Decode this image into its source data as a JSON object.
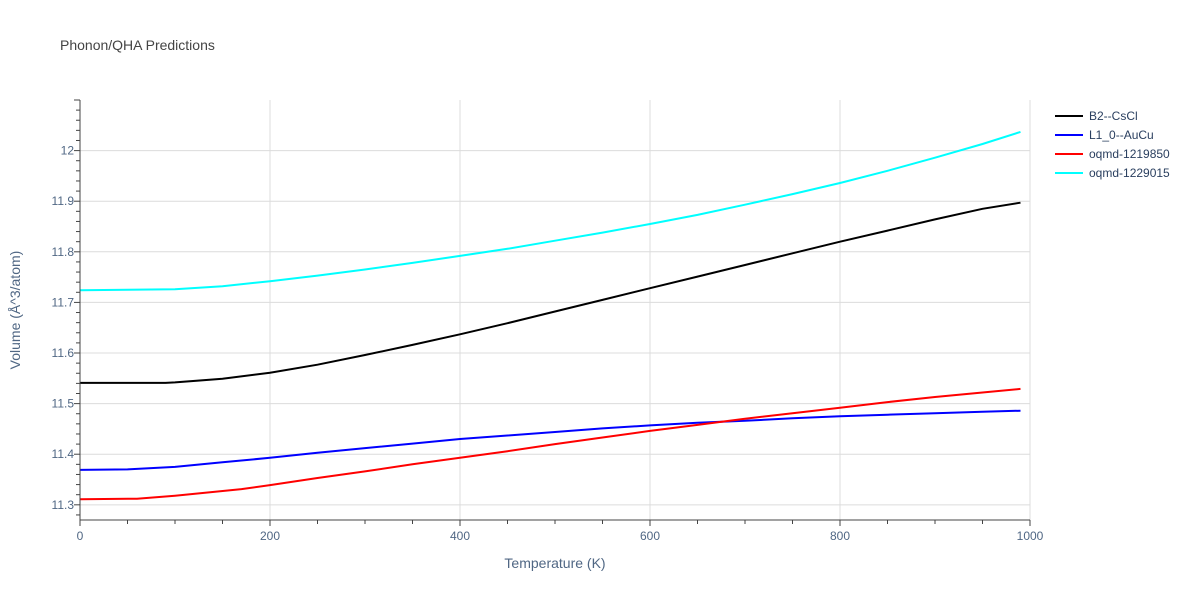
{
  "chart_data": {
    "type": "line",
    "title": "Phonon/QHA Predictions",
    "xlabel": "Temperature (K)",
    "ylabel": "Volume (Å^3/atom)",
    "xlim": [
      0,
      1000
    ],
    "ylim": [
      11.27,
      12.1
    ],
    "xticks": [
      0,
      200,
      400,
      600,
      800,
      1000
    ],
    "xtick_labels": [
      "0",
      "200",
      "400",
      "600",
      "800",
      "1000"
    ],
    "yticks": [
      11.3,
      11.4,
      11.5,
      11.6,
      11.7,
      11.8,
      11.9,
      12.0
    ],
    "ytick_labels": [
      "11.3",
      "11.4",
      "11.5",
      "11.6",
      "11.7",
      "11.8",
      "11.9",
      "12"
    ],
    "grid": true,
    "legend_position": "top-right",
    "series": [
      {
        "name": "B2--CsCl",
        "color": "#000000",
        "x": [
          0,
          50,
          90,
          100,
          150,
          200,
          250,
          300,
          350,
          400,
          450,
          500,
          550,
          600,
          650,
          700,
          750,
          800,
          850,
          900,
          950,
          990
        ],
        "y": [
          11.541,
          11.541,
          11.541,
          11.542,
          11.549,
          11.561,
          11.577,
          11.596,
          11.616,
          11.637,
          11.659,
          11.682,
          11.705,
          11.728,
          11.751,
          11.774,
          11.797,
          11.82,
          11.842,
          11.864,
          11.885,
          11.897
        ]
      },
      {
        "name": "L1_0--AuCu",
        "color": "#0000ff",
        "x": [
          0,
          50,
          100,
          150,
          200,
          250,
          300,
          350,
          400,
          450,
          500,
          550,
          600,
          650,
          700,
          750,
          800,
          850,
          900,
          950,
          990
        ],
        "y": [
          11.369,
          11.37,
          11.375,
          11.384,
          11.393,
          11.403,
          11.412,
          11.421,
          11.43,
          11.437,
          11.444,
          11.451,
          11.457,
          11.462,
          11.466,
          11.471,
          11.475,
          11.478,
          11.481,
          11.484,
          11.486
        ]
      },
      {
        "name": "oqmd-1219850",
        "color": "#ff0000",
        "x": [
          0,
          60,
          100,
          170,
          200,
          250,
          300,
          350,
          400,
          450,
          500,
          550,
          600,
          650,
          700,
          750,
          800,
          850,
          900,
          950,
          990
        ],
        "y": [
          11.311,
          11.312,
          11.318,
          11.331,
          11.339,
          11.353,
          11.366,
          11.38,
          11.393,
          11.406,
          11.42,
          11.433,
          11.446,
          11.458,
          11.47,
          11.481,
          11.492,
          11.503,
          11.513,
          11.522,
          11.529
        ]
      },
      {
        "name": "oqmd-1229015",
        "color": "#00ffff",
        "x": [
          0,
          50,
          100,
          150,
          200,
          250,
          300,
          350,
          400,
          450,
          500,
          550,
          600,
          650,
          700,
          750,
          800,
          850,
          900,
          950,
          990
        ],
        "y": [
          11.724,
          11.725,
          11.726,
          11.732,
          11.742,
          11.753,
          11.765,
          11.778,
          11.792,
          11.806,
          11.822,
          11.838,
          11.855,
          11.873,
          11.893,
          11.914,
          11.936,
          11.96,
          11.986,
          12.013,
          12.037
        ]
      }
    ]
  }
}
